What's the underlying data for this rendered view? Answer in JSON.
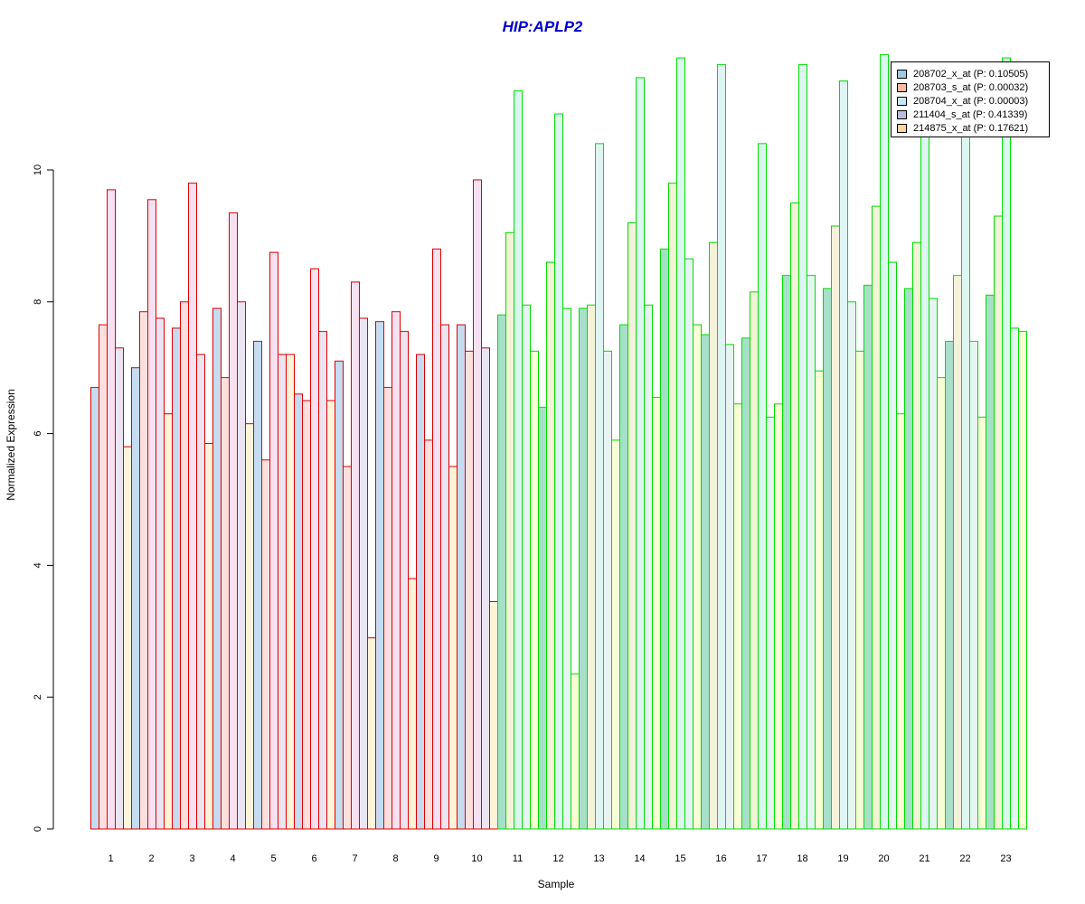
{
  "chart_data": {
    "type": "bar",
    "title": "HIP:APLP2",
    "xlabel": "Sample",
    "ylabel": "Normalized Expression",
    "ylim": [
      0,
      11.8
    ],
    "yticks": [
      "0",
      "2",
      "4",
      "6",
      "8",
      "10"
    ],
    "grid": false,
    "legend_position": "top-right",
    "categories": [
      "1",
      "2",
      "3",
      "4",
      "5",
      "6",
      "7",
      "8",
      "9",
      "10",
      "11",
      "12",
      "13",
      "14",
      "15",
      "16",
      "17",
      "18",
      "19",
      "20",
      "21",
      "22",
      "23"
    ],
    "group_border_colors": [
      "#dd0000",
      "#dd0000",
      "#dd0000",
      "#dd0000",
      "#dd0000",
      "#dd0000",
      "#dd0000",
      "#dd0000",
      "#dd0000",
      "#dd0000",
      "#00dd00",
      "#00dd00",
      "#00dd00",
      "#00dd00",
      "#00dd00",
      "#00dd00",
      "#00dd00",
      "#00dd00",
      "#00dd00",
      "#00dd00",
      "#00dd00",
      "#00dd00",
      "#00dd00"
    ],
    "series": [
      {
        "name": "208702_x_at (P: 0.10505)",
        "color": "#c6dbef",
        "color_alt": "#a6e0c8",
        "values": [
          6.7,
          7.0,
          7.6,
          7.9,
          7.4,
          6.6,
          7.1,
          7.7,
          7.2,
          7.65,
          7.8,
          6.4,
          7.9,
          7.65,
          8.8,
          7.5,
          7.45,
          8.4,
          8.2,
          8.25,
          8.2,
          7.4,
          8.1
        ]
      },
      {
        "name": "208703_s_at (P: 0.00032)",
        "color": "#fde0dd",
        "color_alt": "#f3f3d8",
        "values": [
          7.65,
          7.85,
          8.0,
          6.85,
          5.6,
          6.5,
          5.5,
          6.7,
          5.9,
          7.25,
          9.05,
          8.6,
          7.95,
          9.2,
          9.8,
          8.9,
          8.15,
          9.5,
          9.15,
          9.45,
          8.9,
          8.4,
          9.3
        ]
      },
      {
        "name": "208704_x_at (P: 0.00003)",
        "color": "#f7e0f0",
        "color_alt": "#dcf7f0",
        "values": [
          9.7,
          9.55,
          9.8,
          9.35,
          8.75,
          8.5,
          8.3,
          7.85,
          8.8,
          9.85,
          11.2,
          10.85,
          10.4,
          11.4,
          11.7,
          11.6,
          10.4,
          11.6,
          11.35,
          11.75,
          11.6,
          11.1,
          11.7
        ]
      },
      {
        "name": "211404_s_at (P: 0.41339)",
        "color": "#ede4f2",
        "color_alt": "#e6f5f2",
        "values": [
          7.3,
          7.75,
          7.2,
          8.0,
          7.2,
          7.55,
          7.75,
          7.55,
          7.65,
          7.3,
          7.95,
          7.9,
          7.25,
          7.95,
          8.65,
          7.35,
          6.25,
          8.4,
          8.0,
          8.6,
          8.05,
          7.4,
          7.6
        ]
      },
      {
        "name": "214875_x_at (P: 0.17621)",
        "color": "#fff3d8",
        "color_alt": "#f8ffd5",
        "values": [
          5.8,
          6.3,
          5.85,
          6.15,
          7.2,
          6.5,
          2.9,
          3.8,
          5.5,
          3.45,
          7.25,
          2.35,
          5.9,
          6.55,
          7.65,
          6.45,
          6.45,
          6.95,
          7.25,
          6.3,
          6.85,
          6.25,
          7.55
        ]
      }
    ],
    "legend_swatch_colors": [
      "#9ecae1",
      "#fcbba1",
      "#c7e9f7",
      "#bcbddc",
      "#fdd49e"
    ]
  }
}
